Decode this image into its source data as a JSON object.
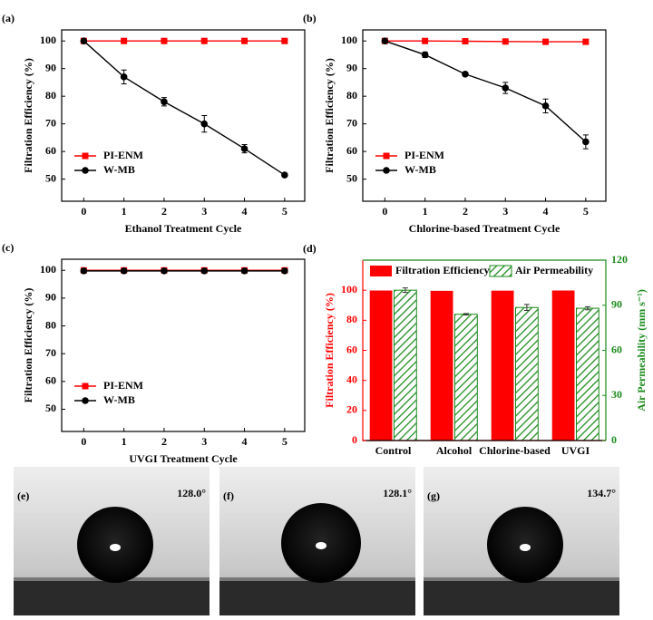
{
  "chart_data": [
    {
      "type": "line",
      "panel_label": "(a)",
      "xlabel": "Ethanol Treatment Cycle",
      "ylabel": "Filtration Efficiency (%)",
      "x": [
        0,
        1,
        2,
        3,
        4,
        5
      ],
      "xlim": [
        -0.55,
        5.5
      ],
      "xticks": [
        0,
        1,
        2,
        3,
        4,
        5
      ],
      "ylim": [
        42,
        104
      ],
      "yticks": [
        50,
        60,
        70,
        80,
        90,
        100
      ],
      "legend": "lower left",
      "series": [
        {
          "name": "PI-ENM",
          "color": "#ff0000",
          "marker": "square",
          "values": [
            100,
            100,
            100,
            100,
            100,
            100
          ]
        },
        {
          "name": "W-MB",
          "color": "#000000",
          "marker": "circle",
          "values": [
            100,
            87,
            78,
            70,
            61,
            51.5
          ],
          "errors": [
            0,
            2.5,
            1.5,
            3,
            1.5,
            0.5
          ]
        }
      ]
    },
    {
      "type": "line",
      "panel_label": "(b)",
      "xlabel": "Chlorine-based Treatment Cycle",
      "ylabel": "Filtration Efficiency (%)",
      "x": [
        0,
        1,
        2,
        3,
        4,
        5
      ],
      "xlim": [
        -0.55,
        5.5
      ],
      "xticks": [
        0,
        1,
        2,
        3,
        4,
        5
      ],
      "ylim": [
        42,
        104
      ],
      "yticks": [
        50,
        60,
        70,
        80,
        90,
        100
      ],
      "legend": "lower left",
      "series": [
        {
          "name": "PI-ENM",
          "color": "#ff0000",
          "marker": "square",
          "values": [
            100,
            100,
            99.9,
            99.8,
            99.7,
            99.7
          ]
        },
        {
          "name": "W-MB",
          "color": "#000000",
          "marker": "circle",
          "values": [
            100,
            95,
            88,
            83,
            76.5,
            63.5
          ],
          "errors": [
            0,
            1,
            0.5,
            2,
            2.5,
            2.5
          ]
        }
      ]
    },
    {
      "type": "line",
      "panel_label": "(c)",
      "xlabel": "UVGI Treatment Cycle",
      "ylabel": "Filtration Efficiency (%)",
      "x": [
        0,
        1,
        2,
        3,
        4,
        5
      ],
      "xlim": [
        -0.55,
        5.5
      ],
      "xticks": [
        0,
        1,
        2,
        3,
        4,
        5
      ],
      "ylim": [
        42,
        104
      ],
      "yticks": [
        50,
        60,
        70,
        80,
        90,
        100
      ],
      "legend": "lower left",
      "series": [
        {
          "name": "PI-ENM",
          "color": "#ff0000",
          "marker": "square",
          "values": [
            100,
            100,
            100,
            100,
            100,
            100
          ]
        },
        {
          "name": "W-MB",
          "color": "#000000",
          "marker": "circle",
          "values": [
            99.8,
            99.8,
            99.8,
            99.8,
            99.8,
            99.8
          ]
        }
      ]
    },
    {
      "type": "bar",
      "panel_label": "(d)",
      "ylabel": "Filtration Efficiency (%)",
      "y2label": "Air Permeability (mm s⁻¹)",
      "categories": [
        "Control",
        "Alcohol",
        "Chlorine-based",
        "UVGI"
      ],
      "ylim": [
        0,
        120
      ],
      "yticks": [
        0,
        20,
        40,
        60,
        80,
        100
      ],
      "y2lim": [
        0,
        120
      ],
      "y2ticks": [
        0,
        30,
        60,
        90,
        120
      ],
      "legend": "upper center",
      "series": [
        {
          "name": "Filtration Efficiency",
          "color": "#ff0000",
          "values": [
            99.8,
            99.6,
            99.7,
            99.8
          ]
        },
        {
          "name": "Air Permeability",
          "color": "#1a8a1a",
          "hatch": true,
          "axis": "y2",
          "values": [
            100,
            84,
            88.5,
            88
          ],
          "errors": [
            1.5,
            0.5,
            2,
            1
          ]
        }
      ]
    }
  ],
  "images": [
    {
      "label": "(e)",
      "angle": "128.0°"
    },
    {
      "label": "(f)",
      "angle": "128.1°"
    },
    {
      "label": "(g)",
      "angle": "134.7°"
    }
  ]
}
